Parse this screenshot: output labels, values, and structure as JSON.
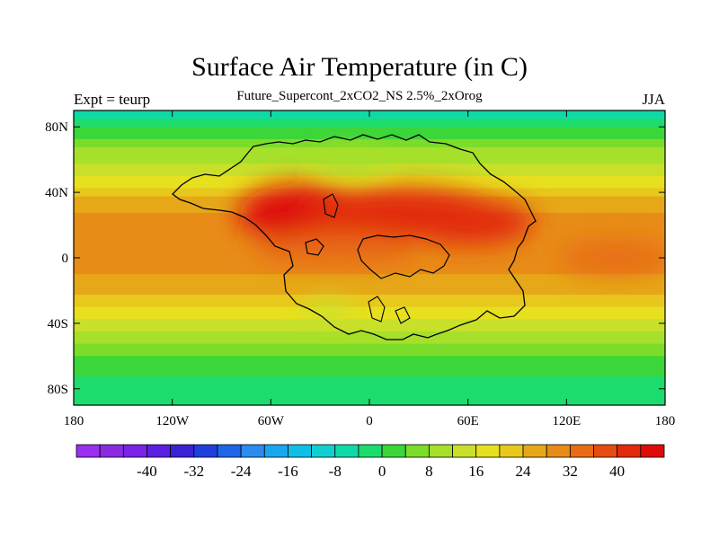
{
  "title": "Surface Air Temperature (in C)",
  "subtitle": "Future_Supercont_2xCO2_NS 2.5%_2xOrog",
  "left_string": "Expt = teurp",
  "right_string": "JJA",
  "chart_data": {
    "type": "heatmap",
    "title": "Surface Air Temperature (in C)",
    "subtitle": "Future_Supercont_2xCO2_NS 2.5%_2xOrog",
    "units": "C",
    "x_ticks": [
      {
        "value": -180,
        "label": "180"
      },
      {
        "value": -120,
        "label": "120W"
      },
      {
        "value": -60,
        "label": "60W"
      },
      {
        "value": 0,
        "label": "0"
      },
      {
        "value": 60,
        "label": "60E"
      },
      {
        "value": 120,
        "label": "120E"
      },
      {
        "value": 180,
        "label": "180"
      }
    ],
    "y_ticks": [
      {
        "value": 80,
        "label": "80N"
      },
      {
        "value": 40,
        "label": "40N"
      },
      {
        "value": 0,
        "label": "0"
      },
      {
        "value": -40,
        "label": "40S"
      },
      {
        "value": -80,
        "label": "80S"
      }
    ],
    "xlim": [
      -180,
      180
    ],
    "ylim": [
      -90,
      90
    ],
    "field_levels": [
      {
        "lat": 90,
        "value": -4
      },
      {
        "lat": 80,
        "value": 2
      },
      {
        "lat": 70,
        "value": 8
      },
      {
        "lat": 60,
        "value": 12
      },
      {
        "lat": 50,
        "value": 16
      },
      {
        "lat": 40,
        "value": 22
      },
      {
        "lat": 30,
        "value": 26
      },
      {
        "lat": 20,
        "value": 28
      },
      {
        "lat": 10,
        "value": 29
      },
      {
        "lat": 0,
        "value": 28
      },
      {
        "lat": -10,
        "value": 26
      },
      {
        "lat": -20,
        "value": 23
      },
      {
        "lat": -30,
        "value": 19
      },
      {
        "lat": -40,
        "value": 14
      },
      {
        "lat": -50,
        "value": 9
      },
      {
        "lat": -60,
        "value": 5
      },
      {
        "lat": -70,
        "value": 2
      },
      {
        "lat": -80,
        "value": -1
      },
      {
        "lat": -90,
        "value": -2
      }
    ],
    "warm_anomalies": [
      {
        "lon": -40,
        "lat": 27,
        "rx": 40,
        "ry": 18,
        "value": 42
      },
      {
        "lon": 20,
        "lat": 27,
        "rx": 60,
        "ry": 16,
        "value": 40
      },
      {
        "lon": 60,
        "lat": 22,
        "rx": 40,
        "ry": 14,
        "value": 38
      },
      {
        "lon": 150,
        "lat": 0,
        "rx": 35,
        "ry": 10,
        "value": 32
      },
      {
        "lon": -20,
        "lat": 5,
        "rx": 50,
        "ry": 10,
        "value": 32
      }
    ],
    "cool_anomalies": [
      {
        "lon": -25,
        "lat": -33,
        "rx": 14,
        "ry": 7,
        "value": 14
      },
      {
        "lon": -10,
        "lat": 60,
        "rx": 18,
        "ry": 6,
        "value": 12
      }
    ],
    "colorbar": {
      "colors": [
        "#9b2ff0",
        "#8a2be2",
        "#7a22e6",
        "#5a1ee0",
        "#3b21d6",
        "#1f3fdd",
        "#1e66e8",
        "#2a8cf0",
        "#1aa6ee",
        "#10bfe8",
        "#12cfcf",
        "#10d9a8",
        "#1ddc6e",
        "#3ad63a",
        "#7cdc2a",
        "#a6e02a",
        "#c8e02a",
        "#e6e01e",
        "#e8c81c",
        "#e6a818",
        "#e88c18",
        "#e86c14",
        "#e64c10",
        "#e22a0c",
        "#de0c08"
      ],
      "tick_labels": [
        "-40",
        "-32",
        "-24",
        "-16",
        "-8",
        "0",
        "8",
        "16",
        "24",
        "32",
        "40"
      ],
      "range": [
        -44,
        44
      ]
    }
  }
}
